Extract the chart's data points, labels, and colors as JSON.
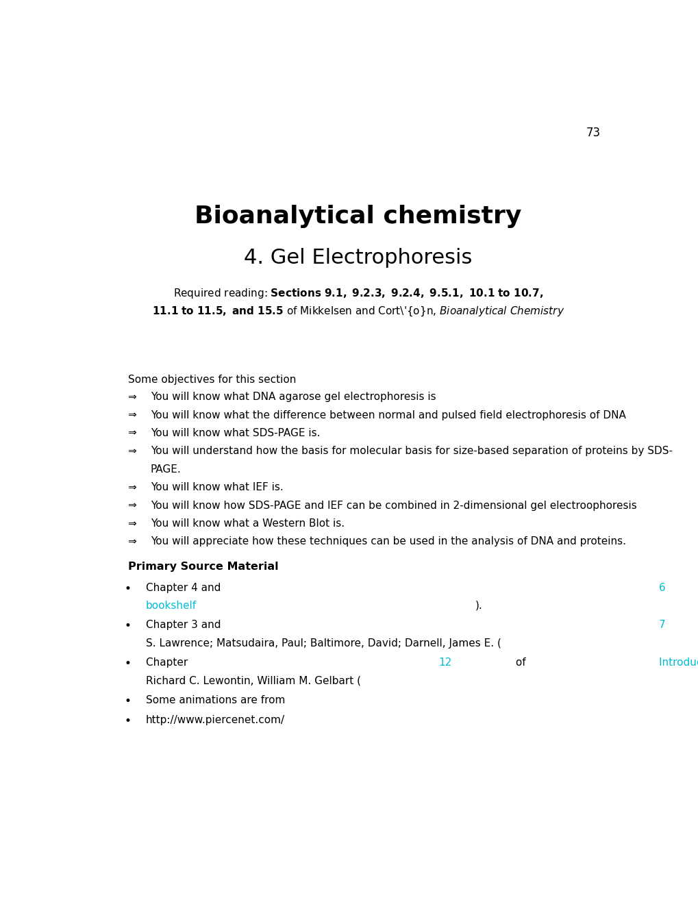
{
  "page_number": "73",
  "title": "Bioanalytical chemistry",
  "subtitle": "4. Gel Electrophoresis",
  "required_reading_line1_bold": "Sections 9.1, 9.2.3, 9.2.4, 9.5.1, 10.1 to 10.7,",
  "required_reading_line2_bold": "11.1 to 11.5, and 15.5",
  "required_reading_line2_normal": " of Mikkelsen and Cortón, ",
  "required_reading_line2_italic": "Bioanalytical Chemistry",
  "objectives_header": "Some objectives for this section",
  "objectives": [
    "You will know what DNA agarose gel electrophoresis is",
    "You will know what the difference between normal and pulsed field electrophoresis of DNA",
    "You will know what SDS-PAGE is.",
    "You will understand how the basis for molecular basis for size-based separation of proteins by SDS-||PAGE.",
    "You will know what IEF is.",
    "You will know how SDS-PAGE and IEF can be combined in 2-dimensional gel electroophoresis",
    "You will know what a Western Blot is.",
    "You will appreciate how these techniques can be used in the analysis of DNA and proteins."
  ],
  "primary_source_header": "Primary Source Material",
  "background_color": "#ffffff",
  "text_color": "#000000",
  "link_color": "#00bcd4"
}
